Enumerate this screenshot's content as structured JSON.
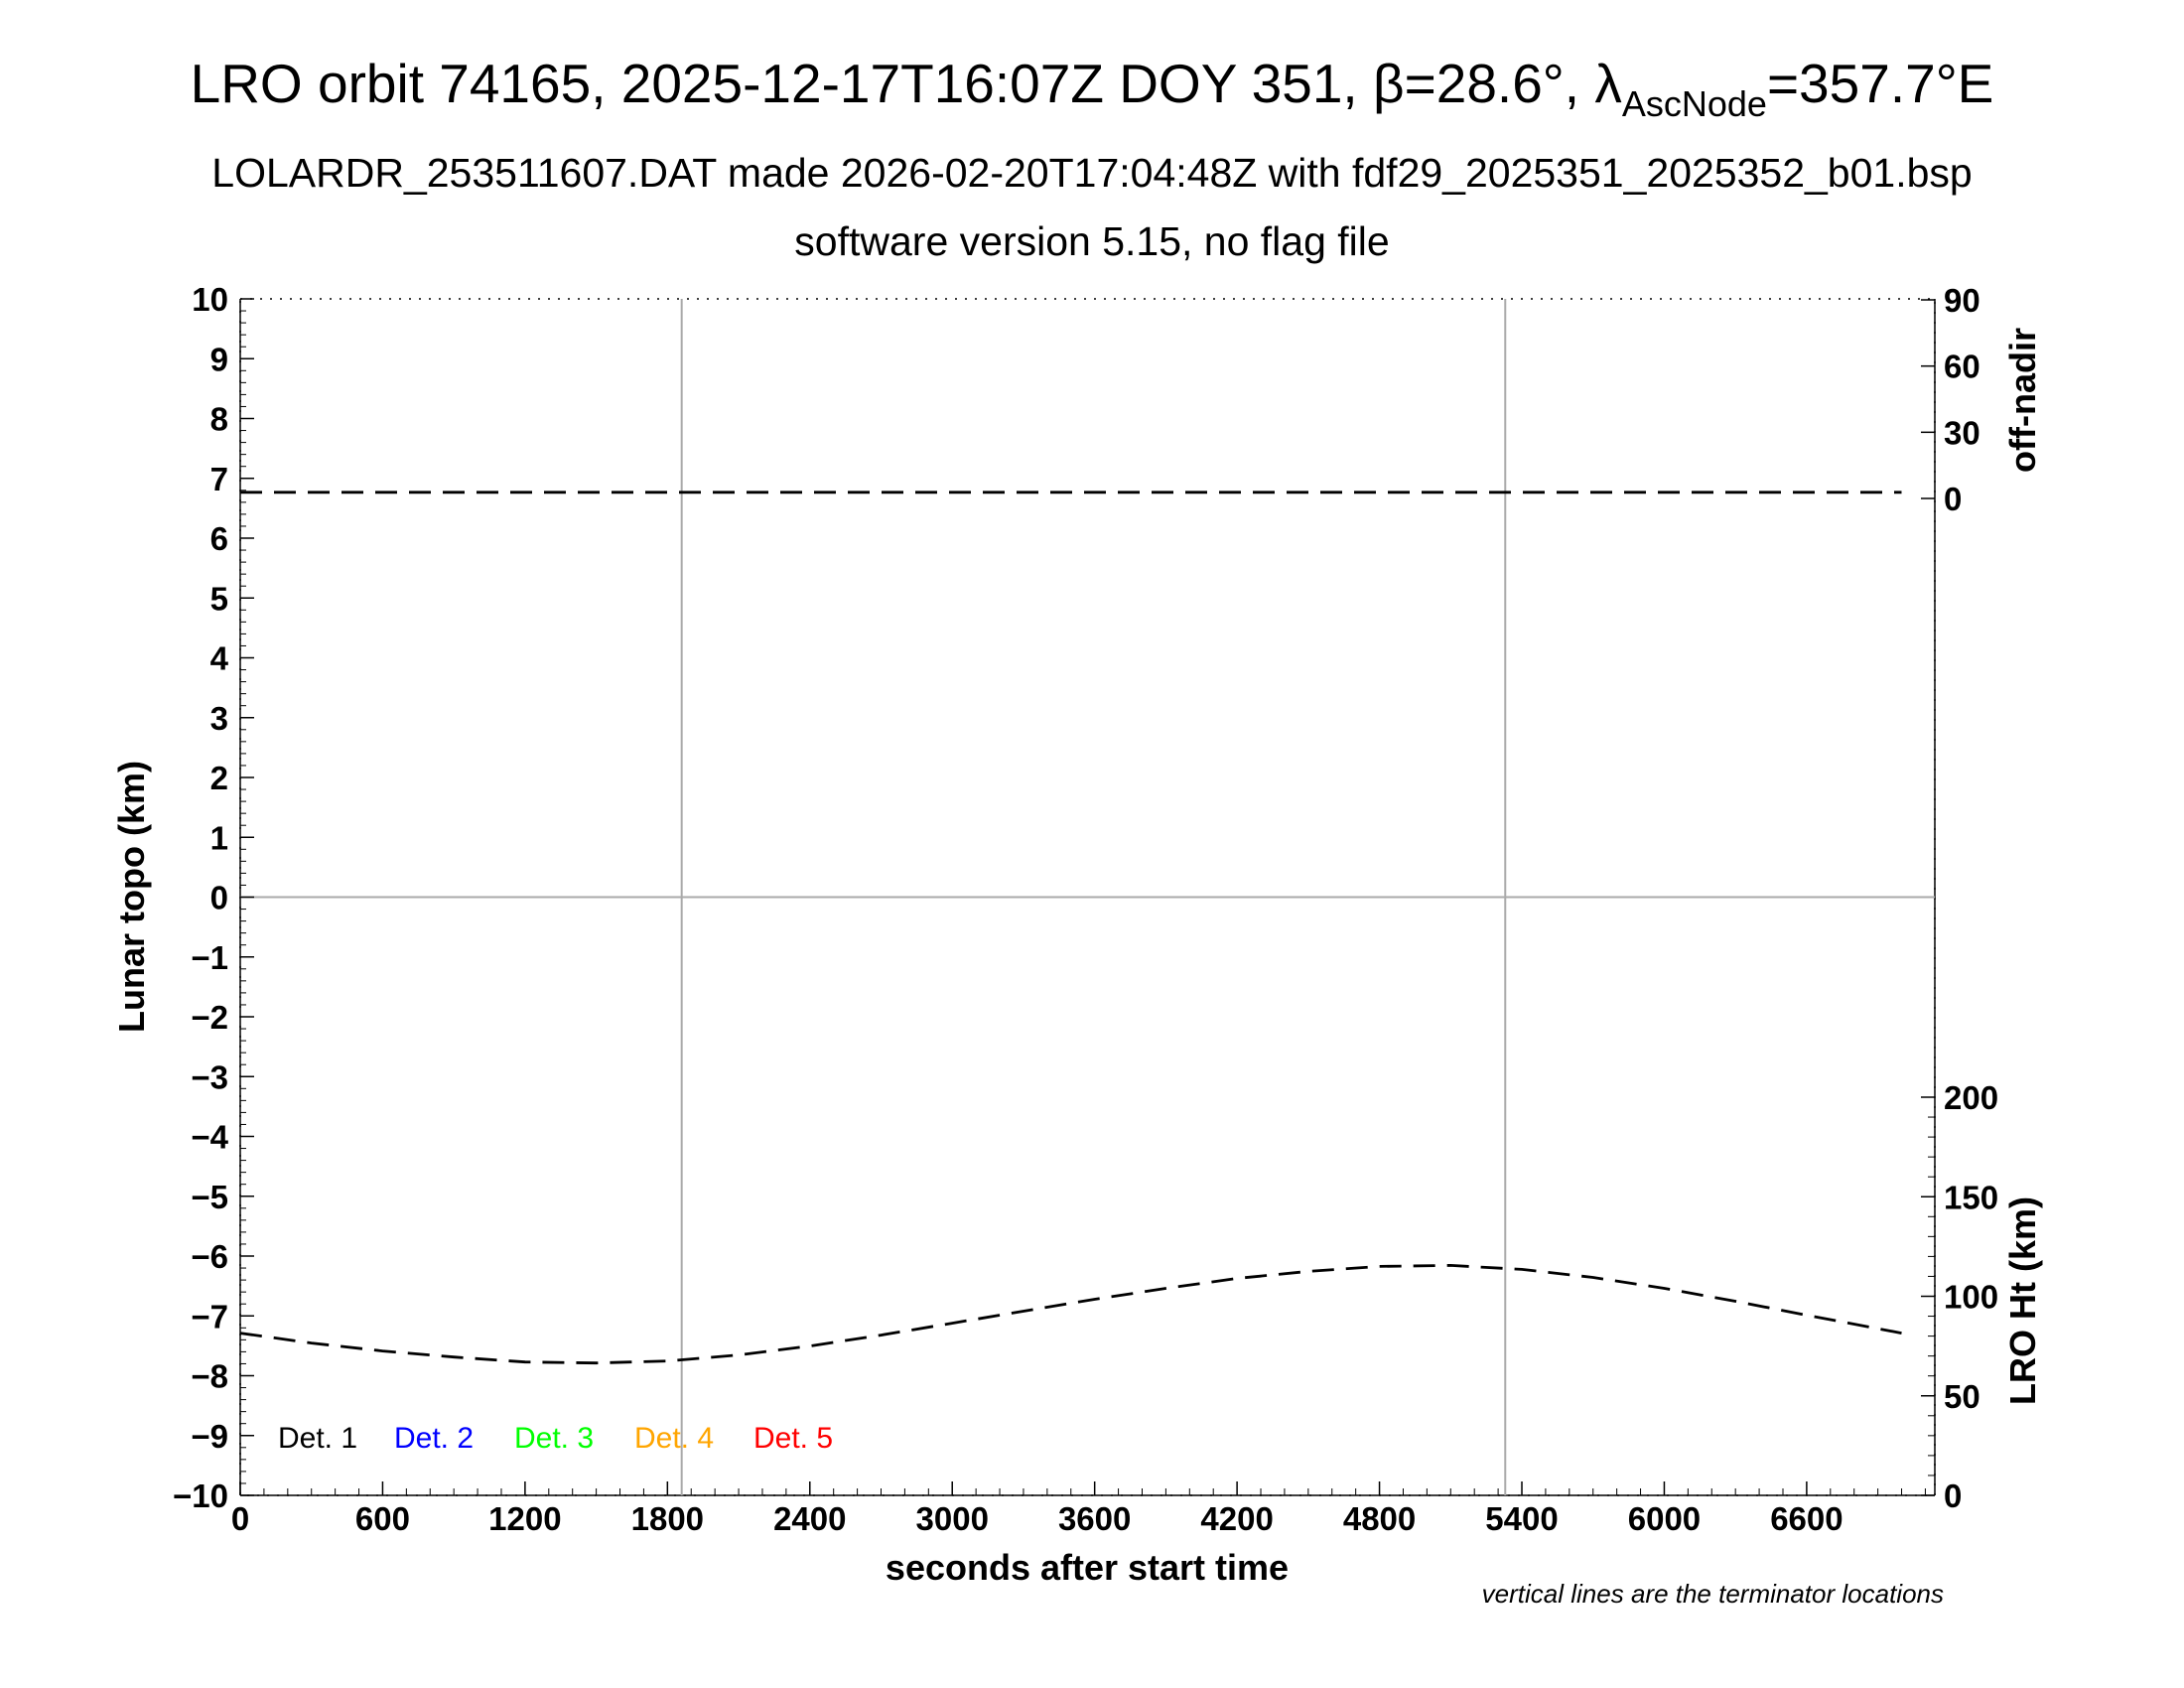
{
  "title": {
    "main": "LRO orbit 74165, 2025-12-17T16:07Z DOY 351, β=28.6°, λ",
    "main_sub": "AscNode",
    "main_tail": "=357.7°E",
    "line2": "LOLARDR_253511607.DAT made 2026-02-20T17:04:48Z with fdf29_2025351_2025352_b01.bsp",
    "line3": "software version 5.15, no flag file"
  },
  "note": "vertical lines are the terminator locations",
  "chart_data": {
    "type": "line",
    "xlabel": "seconds after start time",
    "ylabel": "Lunar topo (km)",
    "y2_top_label": "off-nadir",
    "y2_bottom_label": "LRO Ht (km)",
    "xlim": [
      0,
      7140
    ],
    "ylim": [
      -10,
      10
    ],
    "x_ticks": [
      "0",
      "600",
      "1200",
      "1800",
      "2400",
      "3000",
      "3600",
      "4200",
      "4800",
      "5400",
      "6000",
      "6600"
    ],
    "y_ticks": [
      "10",
      "9",
      "8",
      "7",
      "6",
      "5",
      "4",
      "3",
      "2",
      "1",
      "0",
      "−1",
      "−2",
      "−3",
      "−4",
      "−5",
      "−6",
      "−7",
      "−8",
      "−9",
      "−10"
    ],
    "off_nadir_ticks": [
      "90",
      "60",
      "30",
      "0"
    ],
    "lro_ht_ticks": [
      "200",
      "150",
      "100",
      "50",
      "0"
    ],
    "terminator_lines_x": [
      1860,
      5330
    ],
    "grid": "zero line and terminator lines only",
    "legend": {
      "position": "bottom-left",
      "entries": [
        {
          "label": "Det. 1",
          "color": "#000000"
        },
        {
          "label": "Det. 2",
          "color": "#0000ff"
        },
        {
          "label": "Det. 3",
          "color": "#00ff00"
        },
        {
          "label": "Det. 4",
          "color": "#ffa500"
        },
        {
          "label": "Det. 5",
          "color": "#ff0000"
        }
      ]
    },
    "series": [
      {
        "axis": "off-nadir (deg)",
        "style": "dashed",
        "color": "#000000",
        "x": [
          0,
          600,
          1200,
          1800,
          2400,
          3000,
          3600,
          4200,
          4800,
          5400,
          6000,
          6600,
          7000
        ],
        "values": [
          2.8,
          2.8,
          2.8,
          2.8,
          2.8,
          2.8,
          2.8,
          2.8,
          2.8,
          2.8,
          2.8,
          2.8,
          2.8
        ]
      },
      {
        "axis": "LRO Ht (km)",
        "style": "dashed",
        "color": "#000000",
        "x": [
          0,
          300,
          600,
          900,
          1200,
          1500,
          1800,
          2100,
          2400,
          2700,
          3000,
          3300,
          3600,
          3900,
          4200,
          4500,
          4800,
          5100,
          5400,
          5700,
          6000,
          6300,
          6600,
          7000
        ],
        "values": [
          81.5,
          76.5,
          72.5,
          69.5,
          67.0,
          66.5,
          67.5,
          70.5,
          75.0,
          80.5,
          86.5,
          92.5,
          98.5,
          104.0,
          109.0,
          112.5,
          115.0,
          115.5,
          113.5,
          109.5,
          104.0,
          97.5,
          90.5,
          81.5
        ]
      }
    ]
  }
}
